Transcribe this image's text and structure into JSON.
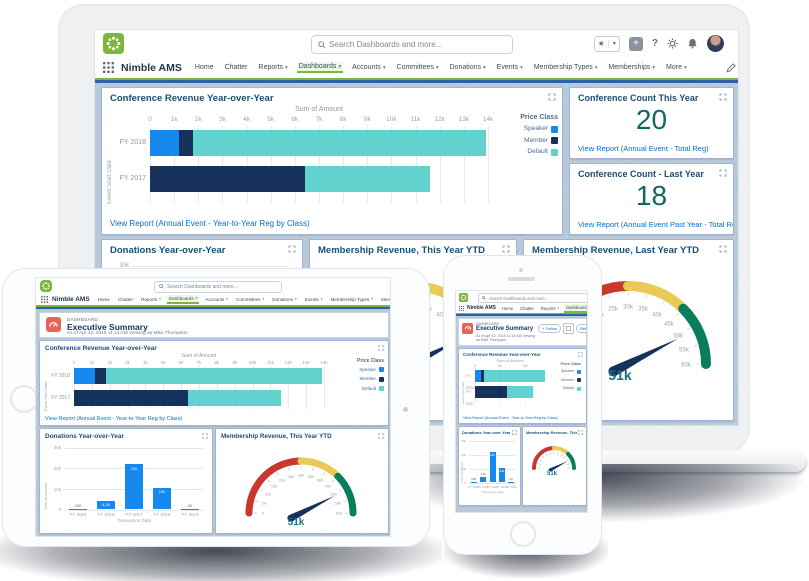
{
  "brand": {
    "app_name": "Nimble AMS",
    "logo_color": "#7db63e"
  },
  "header": {
    "search_placeholder": "Search Dashboards and more...",
    "utility_icons": [
      "favorites-star",
      "favorites-caret",
      "add",
      "help",
      "setup-gear",
      "notifications-bell",
      "avatar"
    ]
  },
  "nav": {
    "items": [
      {
        "label": "Home",
        "caret": false,
        "active": false
      },
      {
        "label": "Chatter",
        "caret": false,
        "active": false
      },
      {
        "label": "Reports",
        "caret": true,
        "active": false
      },
      {
        "label": "Dashboards",
        "caret": true,
        "active": true
      },
      {
        "label": "Accounts",
        "caret": true,
        "active": false
      },
      {
        "label": "Committees",
        "caret": true,
        "active": false
      },
      {
        "label": "Donations",
        "caret": true,
        "active": false
      },
      {
        "label": "Events",
        "caret": true,
        "active": false
      },
      {
        "label": "Membership Types",
        "caret": true,
        "active": false
      },
      {
        "label": "Memberships",
        "caret": true,
        "active": false
      },
      {
        "label": "More",
        "caret": true,
        "active": false
      }
    ]
  },
  "dashboard_header": {
    "type_label": "DASHBOARD",
    "title": "Executive Summary",
    "subtitle": "As of Apr 12, 2018 11:13 AM Viewing as Mike Thompson",
    "follow_label": "+ Follow",
    "refresh_label": "Refresh"
  },
  "panels": {
    "conference_revenue": {
      "title": "Conference Revenue Year-over-Year",
      "link": "View Report (Annual Event - Year-to-Year Reg by Class)"
    },
    "count_this_year": {
      "title": "Conference Count This Year",
      "value": "20",
      "link": "View Report (Annual Event - Total Reg)"
    },
    "count_last_year": {
      "title": "Conference Count - Last Year",
      "value": "18",
      "link": "View Report (Annual Event Past Year - Total Reg)"
    },
    "donations": {
      "title": "Donations Year-over-Year"
    },
    "membership_this": {
      "title": "Membership Revenue, This Year YTD"
    },
    "membership_last": {
      "title": "Membership Revenue, Last Year YTD"
    }
  },
  "colors": {
    "brand_green": "#7db63e",
    "nav_underline": "#7db63e",
    "dashboard_background": "#b7c7da",
    "link_blue": "#0070d2",
    "metric_green": "#11695a",
    "gauge_value_teal": "#15717d",
    "speaker_blue": "#1589ee",
    "member_navy": "#16325c",
    "default_teal": "#62d2cf",
    "gauge_red": "#c9382e",
    "gauge_yellow": "#e8cb57",
    "gauge_green": "#0a7d5c"
  },
  "chart_data": [
    {
      "id": "conference_revenue",
      "type": "bar",
      "orientation": "horizontal",
      "stacked": true,
      "title": "Conference Revenue Year-over-Year",
      "categories": [
        "FY 2018",
        "FY 2017"
      ],
      "series": [
        {
          "name": "Speaker",
          "color": "#1589ee",
          "values": [
            1200,
            0
          ]
        },
        {
          "name": "Member",
          "color": "#16325c",
          "values": [
            600,
            6400
          ]
        },
        {
          "name": "Default",
          "color": "#62d2cf",
          "values": [
            12100,
            5200
          ]
        }
      ],
      "xlabel": "Sum of Amount",
      "ylabel": "Event Start Date",
      "xlim": [
        0,
        14000
      ],
      "legend_title": "Price Class",
      "legend_position": "right",
      "grid": true
    },
    {
      "id": "conference_count_this",
      "type": "metric",
      "title": "Conference Count This Year",
      "value": 20
    },
    {
      "id": "conference_count_last",
      "type": "metric",
      "title": "Conference Count - Last Year",
      "value": 18
    },
    {
      "id": "donations",
      "type": "bar",
      "orientation": "vertical",
      "title": "Donations Year-over-Year",
      "categories": [
        "FY 2015",
        "FY 2016",
        "FY 2017",
        "FY 2018",
        "FY 2019"
      ],
      "values": [
        200,
        4200,
        22000,
        10500,
        50
      ],
      "value_labels": [
        "200",
        "4.2k",
        "22k",
        "10k",
        "50"
      ],
      "xlabel": "Transaction Date",
      "ylabel": "Sum of Amount",
      "ylim": [
        0,
        30000
      ],
      "bar_color": "#1589ee",
      "grid": true
    },
    {
      "id": "membership_this",
      "type": "gauge",
      "title": "Membership Revenue, This Year YTD",
      "value": 51000,
      "display_value": "51k",
      "min": 0,
      "max": 60000,
      "tick_step": 5000,
      "segments": [
        {
          "to": 30000,
          "color": "#c9382e"
        },
        {
          "to": 45000,
          "color": "#e8cb57"
        },
        {
          "to": 60000,
          "color": "#0a7d5c"
        }
      ],
      "needle_color": "#16325c"
    },
    {
      "id": "membership_last",
      "type": "gauge",
      "title": "Membership Revenue, Last Year YTD",
      "value": 51000,
      "display_value": "51k",
      "min": 0,
      "max": 60000,
      "tick_step": 5000,
      "segments": [
        {
          "to": 30000,
          "color": "#c9382e"
        },
        {
          "to": 45000,
          "color": "#e8cb57"
        },
        {
          "to": 60000,
          "color": "#0a7d5c"
        }
      ],
      "needle_color": "#16325c"
    }
  ]
}
